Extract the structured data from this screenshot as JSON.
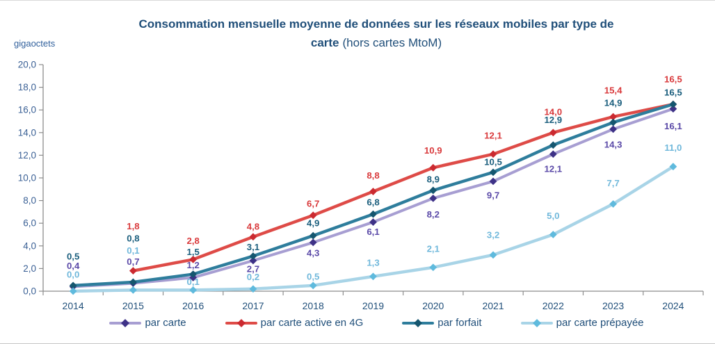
{
  "figure": {
    "title_line1": "Consommation mensuelle moyenne de données sur les réseaux mobiles par type de",
    "title_line2_bold": "carte",
    "title_line2_rest": "(hors cartes MtoM)",
    "unit_label": "gigaoctets"
  },
  "chart_data": {
    "type": "line",
    "title": "Consommation mensuelle moyenne de données sur les réseaux mobiles par type de carte (hors cartes MtoM)",
    "ylabel": "gigaoctets",
    "xlabel": "",
    "categories": [
      "2014",
      "2015",
      "2016",
      "2017",
      "2018",
      "2019",
      "2020",
      "2021",
      "2022",
      "2023",
      "2024"
    ],
    "ylim": [
      0,
      20
    ],
    "ytick_step": 2,
    "decimal_separator": ",",
    "grid": false,
    "legend_position": "bottom",
    "axis_color": "#8C8C8C",
    "tick_label_color": "#3A6095",
    "category_label_color": "#1F4E79",
    "series": [
      {
        "name": "par carte",
        "line_color": "#A79ED2",
        "marker_color": "#3E3287",
        "label_color": "#5B4AA8",
        "values": [
          0.4,
          0.7,
          1.2,
          2.7,
          4.3,
          6.1,
          8.2,
          9.7,
          12.1,
          14.3,
          16.1
        ]
      },
      {
        "name": "par carte active en 4G",
        "line_color": "#DE4B47",
        "marker_color": "#CB2A30",
        "label_color": "#D93A3C",
        "values": [
          null,
          1.8,
          2.8,
          4.8,
          6.7,
          8.8,
          10.9,
          12.1,
          14.0,
          15.4,
          16.5
        ]
      },
      {
        "name": "par forfait",
        "line_color": "#2E7D9C",
        "marker_color": "#15566F",
        "label_color": "#1A5E7D",
        "values": [
          0.5,
          0.8,
          1.5,
          3.1,
          4.9,
          6.8,
          8.9,
          10.5,
          12.9,
          14.9,
          16.5
        ]
      },
      {
        "name": "par carte prépayée",
        "line_color": "#A8D4E7",
        "marker_color": "#5FBADD",
        "label_color": "#70B8DB",
        "values": [
          0.0,
          0.1,
          0.1,
          0.2,
          0.5,
          1.3,
          2.1,
          3.2,
          5.0,
          7.7,
          11.0
        ]
      }
    ]
  }
}
